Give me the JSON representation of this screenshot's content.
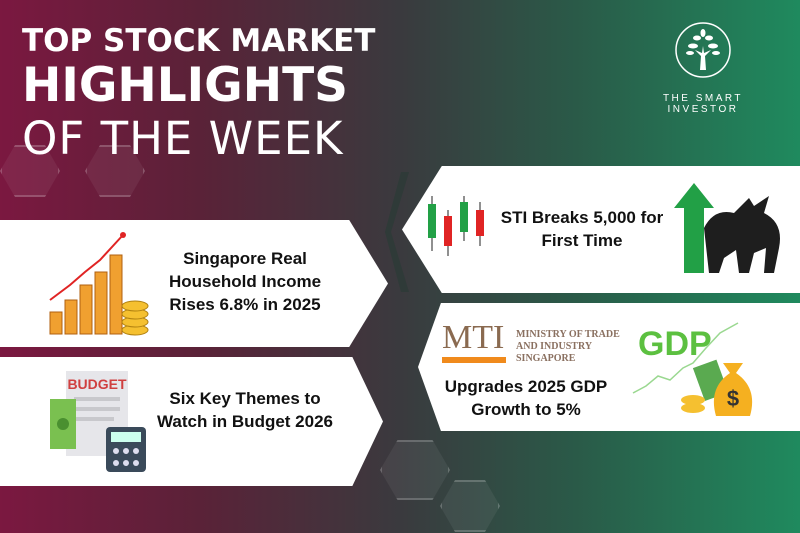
{
  "title": {
    "line1": "TOP STOCK MARKET",
    "line2": "HIGHLIGHTS",
    "line3": "OF THE WEEK"
  },
  "brand": {
    "name": "THE SMART INVESTOR",
    "icon": "tree-circle-logo"
  },
  "colors": {
    "maroon": "#7b1840",
    "green": "#1f8a5e",
    "candle_up": "#22a046",
    "candle_down": "#e02424",
    "gdp_green": "#5cc040",
    "mti_orange": "#f08a1c"
  },
  "highlights": [
    {
      "headline": "STI Breaks 5,000 for First Time",
      "icon": "candlestick-bull-icon"
    },
    {
      "headline": "Singapore Real Household Income Rises 6.8% in 2025",
      "icon": "bar-chart-coins-icon"
    },
    {
      "headline": "Upgrades 2025 GDP Growth to 5%",
      "icon": "gdp-money-bag-icon",
      "logo_text": "MTI",
      "logo_sub": [
        "MINISTRY OF TRADE",
        "AND INDUSTRY",
        "SINGAPORE"
      ],
      "badge": "GDP"
    },
    {
      "headline": "Six Key Themes to Watch in Budget 2026",
      "icon": "budget-calculator-icon",
      "doc_label": "BUDGET"
    }
  ]
}
